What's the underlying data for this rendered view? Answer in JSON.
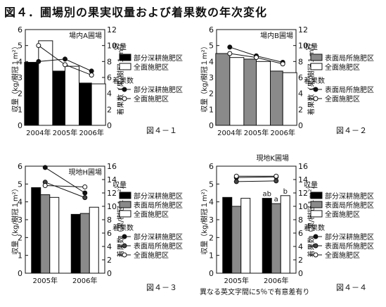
{
  "figure_title": "図４．圃場別の果実収量および着果数の年次変化",
  "footnote": "異なる英文字間に5％で有意差有り",
  "chart_data": [
    {
      "type": "bar",
      "panel_title": "場内A圃場",
      "caption": "図４－１",
      "categories": [
        "2004年",
        "2005年",
        "2006年"
      ],
      "ylabel": "収量（kg/樹冠１m²）",
      "y2label": "着果数（果/樹冠１m²）",
      "ylim": [
        0,
        6
      ],
      "y2lim": [
        0,
        12
      ],
      "yticks": [
        "0",
        "1",
        "2",
        "3",
        "4",
        "5",
        "6"
      ],
      "y2ticks": [
        "0",
        "2",
        "4",
        "6",
        "8",
        "10",
        "12"
      ],
      "series": [
        {
          "name": "部分深耕施肥区",
          "values": [
            3.95,
            3.4,
            2.65
          ],
          "color": "#000000"
        },
        {
          "name": "全面施肥区",
          "values": [
            5.3,
            3.7,
            2.6
          ],
          "color": "#ffffff"
        }
      ],
      "line_series": [
        {
          "name": "部分深耕施肥区",
          "values": [
            8.0,
            8.3,
            6.8
          ],
          "marker": "filled"
        },
        {
          "name": "全面施肥区",
          "values": [
            10.0,
            7.6,
            6.3
          ],
          "marker": "open"
        }
      ],
      "letters": [],
      "legend": {
        "bar_heading": "収量",
        "line_heading": "着果数"
      }
    },
    {
      "type": "bar",
      "panel_title": "場内B圃場",
      "caption": "図４－２",
      "categories": [
        "2004年",
        "2005年",
        "2006年"
      ],
      "ylabel": "収量（kg/樹冠１m²）",
      "y2label": "着果数（果/樹冠１m²）",
      "ylim": [
        0,
        6
      ],
      "y2lim": [
        0,
        12
      ],
      "yticks": [
        "0",
        "1",
        "2",
        "3",
        "4",
        "5",
        "6"
      ],
      "y2ticks": [
        "0",
        "2",
        "4",
        "6",
        "8",
        "10",
        "12"
      ],
      "series": [
        {
          "name": "表面局所施肥区",
          "values": [
            4.5,
            4.15,
            3.4
          ],
          "color": "#8a8a8a"
        },
        {
          "name": "全面施肥区",
          "values": [
            4.25,
            4.0,
            3.3
          ],
          "color": "#ffffff"
        }
      ],
      "line_series": [
        {
          "name": "表面局所施肥区",
          "values": [
            9.8,
            8.7,
            7.9
          ],
          "marker": "filled"
        },
        {
          "name": "全面施肥区",
          "values": [
            9.0,
            8.5,
            7.7
          ],
          "marker": "open"
        }
      ],
      "letters": [],
      "legend": {
        "bar_heading": "収量",
        "line_heading": "着果数"
      }
    },
    {
      "type": "bar",
      "panel_title": "現地H圃場",
      "caption": "図４－３",
      "categories": [
        "2005年",
        "2006年"
      ],
      "ylabel": "収量（kg/樹冠１m²）",
      "y2label": "着果数（果/樹冠１m²）",
      "ylim": [
        0,
        6
      ],
      "y2lim": [
        0,
        16
      ],
      "yticks": [
        "0",
        "1",
        "2",
        "3",
        "4",
        "5",
        "6"
      ],
      "y2ticks": [
        "0",
        "2",
        "4",
        "6",
        "8",
        "10",
        "12",
        "14",
        "16"
      ],
      "series": [
        {
          "name": "部分深耕施肥区",
          "values": [
            4.8,
            3.3
          ],
          "color": "#000000"
        },
        {
          "name": "表面局所施肥区",
          "values": [
            4.4,
            3.35
          ],
          "color": "#8a8a8a"
        },
        {
          "name": "全面施肥区",
          "values": [
            4.25,
            3.7
          ],
          "color": "#ffffff"
        }
      ],
      "line_series": [
        {
          "name": "部分深耕施肥区",
          "values": [
            15.8,
            12.0
          ],
          "marker": "filled"
        },
        {
          "name": "表面局所施肥区",
          "values": [
            13.6,
            11.3
          ],
          "marker": "filled-gray"
        },
        {
          "name": "全面施肥区",
          "values": [
            13.1,
            12.9
          ],
          "marker": "open"
        }
      ],
      "letters": [],
      "legend": {
        "bar_heading": "収量",
        "line_heading": "着果数"
      }
    },
    {
      "type": "bar",
      "panel_title": "現地K圃場",
      "caption": "図４－４",
      "categories": [
        "2005年",
        "2006年"
      ],
      "ylabel": "収量（kg/樹冠１m²）",
      "y2label": "着果数（果/樹冠１m²）",
      "ylim": [
        0,
        6
      ],
      "y2lim": [
        0,
        16
      ],
      "yticks": [
        "0",
        "1",
        "2",
        "3",
        "4",
        "5",
        "6"
      ],
      "y2ticks": [
        "0",
        "2",
        "4",
        "6",
        "8",
        "10",
        "12",
        "14",
        "16"
      ],
      "series": [
        {
          "name": "部分深耕施肥区",
          "values": [
            4.25,
            4.2
          ],
          "color": "#000000"
        },
        {
          "name": "表面局所施肥区",
          "values": [
            3.75,
            3.9
          ],
          "color": "#8a8a8a"
        },
        {
          "name": "全面施肥区",
          "values": [
            4.2,
            4.35
          ],
          "color": "#ffffff"
        }
      ],
      "line_series": [
        {
          "name": "部分深耕施肥区",
          "values": [
            14.3,
            14.4
          ],
          "marker": "filled"
        },
        {
          "name": "表面局所施肥区",
          "values": [
            13.7,
            13.8
          ],
          "marker": "filled-gray"
        },
        {
          "name": "全面施肥区",
          "values": [
            14.5,
            14.5
          ],
          "marker": "open"
        }
      ],
      "letters": [
        {
          "category": 1,
          "series": 0,
          "text": "ab"
        },
        {
          "category": 1,
          "series": 1,
          "text": "a"
        },
        {
          "category": 1,
          "series": 2,
          "text": "b"
        }
      ],
      "legend": {
        "bar_heading": "収量",
        "line_heading": "着果数"
      }
    }
  ]
}
